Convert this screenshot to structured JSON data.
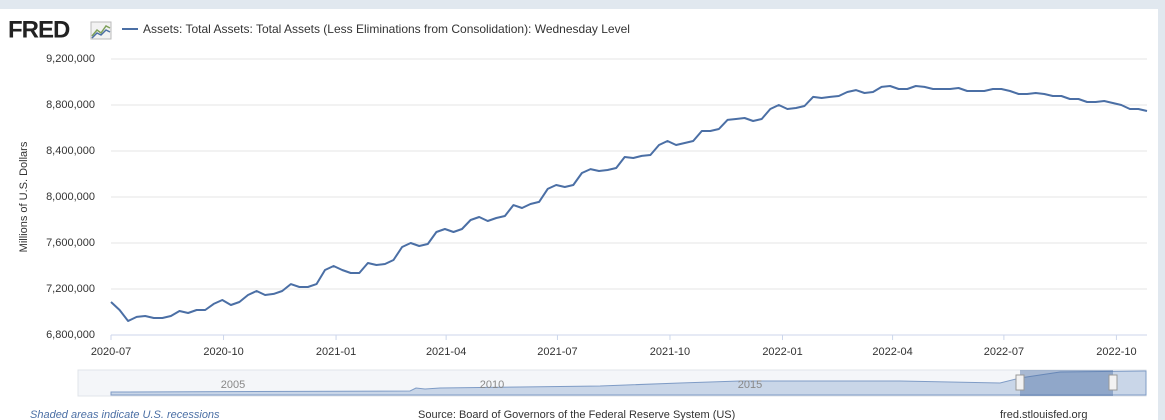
{
  "header": {
    "logo": "FRED"
  },
  "chart_data": {
    "type": "line",
    "ylabel": "Millions of U.S. Dollars",
    "grid": true,
    "xlim": [
      "2020-07-01",
      "2022-10-26"
    ],
    "xticks": [
      "2020-07",
      "2020-10",
      "2021-01",
      "2021-04",
      "2021-07",
      "2021-10",
      "2022-01",
      "2022-04",
      "2022-07",
      "2022-10"
    ],
    "ylim": [
      6800000,
      9200000
    ],
    "yticks": [
      {
        "value": 6800000,
        "label": "6,800,000"
      },
      {
        "value": 7200000,
        "label": "7,200,000"
      },
      {
        "value": 7600000,
        "label": "7,600,000"
      },
      {
        "value": 8000000,
        "label": "8,000,000"
      },
      {
        "value": 8400000,
        "label": "8,400,000"
      },
      {
        "value": 8800000,
        "label": "8,800,000"
      },
      {
        "value": 9200000,
        "label": "9,200,000"
      }
    ],
    "x": [
      "2020-07-01",
      "2020-07-08",
      "2020-07-15",
      "2020-07-22",
      "2020-07-29",
      "2020-08-05",
      "2020-08-12",
      "2020-08-19",
      "2020-08-26",
      "2020-09-02",
      "2020-09-09",
      "2020-09-16",
      "2020-09-23",
      "2020-09-30",
      "2020-10-07",
      "2020-10-14",
      "2020-10-21",
      "2020-10-28",
      "2020-11-04",
      "2020-11-11",
      "2020-11-18",
      "2020-11-25",
      "2020-12-02",
      "2020-12-09",
      "2020-12-16",
      "2020-12-23",
      "2020-12-30",
      "2021-01-06",
      "2021-01-13",
      "2021-01-20",
      "2021-01-27",
      "2021-02-03",
      "2021-02-10",
      "2021-02-17",
      "2021-02-24",
      "2021-03-03",
      "2021-03-10",
      "2021-03-17",
      "2021-03-24",
      "2021-03-31",
      "2021-04-07",
      "2021-04-14",
      "2021-04-21",
      "2021-04-28",
      "2021-05-05",
      "2021-05-12",
      "2021-05-19",
      "2021-05-26",
      "2021-06-02",
      "2021-06-09",
      "2021-06-16",
      "2021-06-23",
      "2021-06-30",
      "2021-07-07",
      "2021-07-14",
      "2021-07-21",
      "2021-07-28",
      "2021-08-04",
      "2021-08-11",
      "2021-08-18",
      "2021-08-25",
      "2021-09-01",
      "2021-09-08",
      "2021-09-15",
      "2021-09-22",
      "2021-09-29",
      "2021-10-06",
      "2021-10-13",
      "2021-10-20",
      "2021-10-27",
      "2021-11-03",
      "2021-11-10",
      "2021-11-17",
      "2021-11-24",
      "2021-12-01",
      "2021-12-08",
      "2021-12-15",
      "2021-12-22",
      "2021-12-29",
      "2022-01-05",
      "2022-01-12",
      "2022-01-19",
      "2022-01-26",
      "2022-02-02",
      "2022-02-09",
      "2022-02-16",
      "2022-02-23",
      "2022-03-02",
      "2022-03-09",
      "2022-03-16",
      "2022-03-23",
      "2022-03-30",
      "2022-04-06",
      "2022-04-13",
      "2022-04-20",
      "2022-04-27",
      "2022-05-04",
      "2022-05-11",
      "2022-05-18",
      "2022-05-25",
      "2022-06-01",
      "2022-06-08",
      "2022-06-15",
      "2022-06-22",
      "2022-06-29",
      "2022-07-06",
      "2022-07-13",
      "2022-07-20",
      "2022-07-27",
      "2022-08-03",
      "2022-08-10",
      "2022-08-17",
      "2022-08-24",
      "2022-08-31",
      "2022-09-07",
      "2022-09-14",
      "2022-09-21",
      "2022-09-28",
      "2022-10-05",
      "2022-10-12",
      "2022-10-19",
      "2022-10-26"
    ],
    "series": [
      {
        "name": "Assets: Total Assets: Total Assets (Less Eliminations from Consolidation): Wednesday Level",
        "color": "#4b6fa5",
        "values": [
          7087000,
          7017000,
          6922000,
          6957000,
          6965000,
          6948000,
          6948000,
          6965000,
          7009000,
          6991000,
          7017000,
          7017000,
          7070000,
          7104000,
          7061000,
          7087000,
          7148000,
          7183000,
          7148000,
          7157000,
          7183000,
          7243000,
          7217000,
          7217000,
          7243000,
          7365000,
          7400000,
          7365000,
          7339000,
          7339000,
          7426000,
          7409000,
          7417000,
          7452000,
          7565000,
          7600000,
          7574000,
          7591000,
          7696000,
          7722000,
          7696000,
          7722000,
          7800000,
          7826000,
          7791000,
          7817000,
          7835000,
          7930000,
          7904000,
          7939000,
          7957000,
          8070000,
          8104000,
          8087000,
          8104000,
          8209000,
          8243000,
          8226000,
          8235000,
          8252000,
          8348000,
          8339000,
          8357000,
          8365000,
          8452000,
          8487000,
          8452000,
          8470000,
          8487000,
          8574000,
          8574000,
          8591000,
          8670000,
          8678000,
          8687000,
          8661000,
          8678000,
          8765000,
          8800000,
          8765000,
          8774000,
          8791000,
          8870000,
          8861000,
          8870000,
          8878000,
          8913000,
          8930000,
          8904000,
          8913000,
          8957000,
          8965000,
          8939000,
          8939000,
          8965000,
          8957000,
          8939000,
          8939000,
          8939000,
          8948000,
          8922000,
          8922000,
          8922000,
          8939000,
          8939000,
          8922000,
          8896000,
          8896000,
          8904000,
          8896000,
          8878000,
          8878000,
          8852000,
          8852000,
          8826000,
          8826000,
          8835000,
          8817000,
          8800000,
          8765000,
          8765000,
          8748000
        ]
      }
    ]
  },
  "navigator": {
    "labels": [
      "2005",
      "2010",
      "2015"
    ]
  },
  "footer": {
    "note": "Shaded areas indicate U.S. recessions",
    "source": "Source: Board of Governors of the Federal Reserve System (US)",
    "site": "fred.stlouisfed.org"
  }
}
